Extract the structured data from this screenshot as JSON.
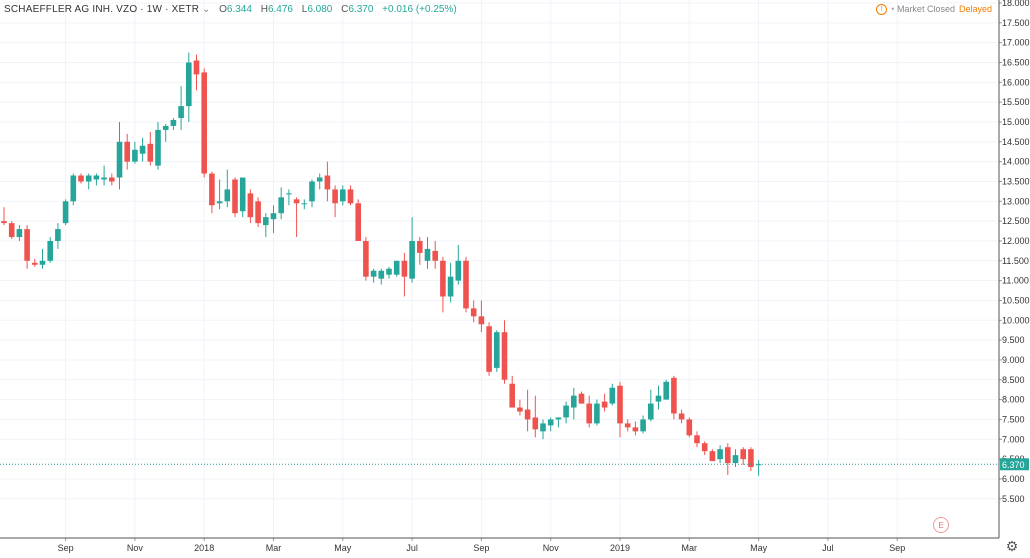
{
  "legend": {
    "symbol": "SCHAEFFLER AG INH. VZO · 1W · XETR",
    "chevron": "⌄",
    "open_label": "O",
    "open": "6.344",
    "high_label": "H",
    "high": "6.476",
    "low_label": "L",
    "low": "6.080",
    "close_label": "C",
    "close": "6.370",
    "change": "+0.016 (+0.25%)"
  },
  "status": {
    "icon": "!",
    "market": "Market Closed",
    "delayed": "Delayed"
  },
  "colors": {
    "up": "#26a69a",
    "down": "#ef5350",
    "grid": "#f0f3fa",
    "axis": "#555555",
    "last": "#26a69a"
  },
  "settings_icon": "gear-icon",
  "earnings_marker": "E",
  "chart_data": {
    "type": "candlestick",
    "title": "SCHAEFFLER AG INH. VZO · 1W · XETR",
    "ylim": [
      5.0,
      18.0
    ],
    "y_ticks": [
      "5.500",
      "6.000",
      "6.500",
      "7.000",
      "7.500",
      "8.000",
      "8.500",
      "9.000",
      "9.500",
      "10.000",
      "10.500",
      "11.000",
      "11.500",
      "12.000",
      "12.500",
      "13.000",
      "13.500",
      "14.000",
      "14.500",
      "15.000",
      "15.500",
      "16.000",
      "16.500",
      "17.000",
      "17.500",
      "18.000"
    ],
    "x_ticks": [
      {
        "label": "Sep",
        "week": 8
      },
      {
        "label": "Nov",
        "week": 17
      },
      {
        "label": "2018",
        "week": 26
      },
      {
        "label": "Mar",
        "week": 35
      },
      {
        "label": "May",
        "week": 44
      },
      {
        "label": "Jul",
        "week": 53
      },
      {
        "label": "Sep",
        "week": 62
      },
      {
        "label": "Nov",
        "week": 71
      },
      {
        "label": "2019",
        "week": 80
      },
      {
        "label": "Mar",
        "week": 89
      },
      {
        "label": "May",
        "week": 98
      },
      {
        "label": "Jul",
        "week": 107
      },
      {
        "label": "Sep",
        "week": 116
      }
    ],
    "last_price": "6.370",
    "ohlc": [
      [
        12.5,
        12.85,
        12.4,
        12.45
      ],
      [
        12.45,
        12.5,
        12.05,
        12.1
      ],
      [
        12.1,
        12.4,
        12.0,
        12.3
      ],
      [
        12.3,
        12.4,
        11.3,
        11.5
      ],
      [
        11.45,
        11.55,
        11.35,
        11.4
      ],
      [
        11.4,
        11.8,
        11.3,
        11.5
      ],
      [
        11.5,
        12.1,
        11.45,
        12.0
      ],
      [
        12.0,
        12.45,
        11.8,
        12.3
      ],
      [
        12.45,
        13.05,
        12.4,
        13.0
      ],
      [
        13.0,
        13.7,
        12.9,
        13.65
      ],
      [
        13.65,
        13.7,
        13.45,
        13.5
      ],
      [
        13.5,
        13.7,
        13.3,
        13.65
      ],
      [
        13.55,
        13.7,
        13.4,
        13.65
      ],
      [
        13.55,
        13.9,
        13.4,
        13.6
      ],
      [
        13.6,
        13.7,
        13.4,
        13.5
      ],
      [
        13.6,
        15.0,
        13.3,
        14.5
      ],
      [
        14.5,
        14.7,
        13.8,
        14.0
      ],
      [
        14.0,
        14.5,
        13.95,
        14.3
      ],
      [
        14.2,
        14.6,
        14.0,
        14.4
      ],
      [
        14.45,
        14.75,
        13.9,
        14.0
      ],
      [
        13.9,
        15.0,
        13.8,
        14.8
      ],
      [
        14.8,
        14.95,
        14.5,
        14.9
      ],
      [
        14.9,
        15.1,
        14.8,
        15.05
      ],
      [
        15.1,
        15.9,
        14.8,
        15.4
      ],
      [
        15.4,
        16.75,
        15.0,
        16.5
      ],
      [
        16.55,
        16.7,
        15.8,
        16.2
      ],
      [
        16.25,
        16.35,
        13.6,
        13.7
      ],
      [
        13.7,
        13.75,
        12.7,
        12.9
      ],
      [
        12.95,
        13.55,
        12.8,
        13.0
      ],
      [
        13.0,
        13.8,
        12.85,
        13.3
      ],
      [
        13.55,
        13.6,
        12.6,
        12.7
      ],
      [
        12.75,
        13.6,
        12.6,
        13.6
      ],
      [
        13.2,
        13.3,
        12.45,
        12.6
      ],
      [
        13.0,
        13.1,
        12.35,
        12.45
      ],
      [
        12.4,
        12.7,
        12.1,
        12.6
      ],
      [
        12.55,
        12.9,
        12.2,
        12.7
      ],
      [
        12.7,
        13.35,
        12.55,
        13.1
      ],
      [
        13.2,
        13.3,
        12.9,
        13.2
      ],
      [
        13.05,
        13.1,
        12.1,
        12.95
      ],
      [
        12.95,
        13.05,
        12.8,
        12.95
      ],
      [
        13.0,
        13.55,
        12.85,
        13.5
      ],
      [
        13.5,
        13.7,
        13.3,
        13.6
      ],
      [
        13.65,
        14.0,
        13.0,
        13.3
      ],
      [
        13.3,
        13.4,
        12.6,
        12.95
      ],
      [
        13.0,
        13.4,
        12.9,
        13.3
      ],
      [
        13.3,
        13.4,
        12.9,
        12.95
      ],
      [
        12.95,
        13.05,
        12.0,
        12.0
      ],
      [
        12.0,
        12.1,
        11.0,
        11.1
      ],
      [
        11.1,
        11.3,
        10.95,
        11.25
      ],
      [
        11.05,
        11.3,
        10.9,
        11.25
      ],
      [
        11.15,
        11.35,
        11.05,
        11.3
      ],
      [
        11.15,
        11.5,
        11.1,
        11.5
      ],
      [
        11.5,
        11.7,
        10.6,
        11.1
      ],
      [
        11.05,
        12.6,
        10.95,
        12.0
      ],
      [
        12.0,
        12.1,
        11.4,
        11.7
      ],
      [
        11.5,
        12.1,
        11.3,
        11.8
      ],
      [
        11.75,
        12.0,
        11.3,
        11.5
      ],
      [
        11.5,
        11.6,
        10.2,
        10.6
      ],
      [
        10.6,
        11.45,
        10.45,
        11.1
      ],
      [
        11.0,
        11.9,
        10.9,
        11.5
      ],
      [
        11.5,
        11.6,
        10.2,
        10.3
      ],
      [
        10.3,
        10.5,
        9.95,
        10.1
      ],
      [
        10.1,
        10.5,
        9.7,
        9.9
      ],
      [
        9.85,
        9.95,
        8.6,
        8.7
      ],
      [
        8.8,
        9.75,
        8.7,
        9.7
      ],
      [
        9.7,
        10.0,
        8.4,
        8.5
      ],
      [
        8.4,
        8.6,
        7.8,
        7.8
      ],
      [
        7.8,
        8.0,
        7.6,
        7.7
      ],
      [
        7.75,
        8.25,
        7.2,
        7.5
      ],
      [
        7.55,
        8.1,
        7.05,
        7.25
      ],
      [
        7.2,
        7.5,
        7.0,
        7.4
      ],
      [
        7.35,
        7.55,
        7.2,
        7.5
      ],
      [
        7.5,
        7.55,
        7.3,
        7.55
      ],
      [
        7.55,
        7.95,
        7.4,
        7.85
      ],
      [
        7.8,
        8.3,
        7.5,
        8.1
      ],
      [
        8.15,
        8.2,
        7.9,
        7.9
      ],
      [
        7.9,
        8.1,
        7.3,
        7.4
      ],
      [
        7.4,
        8.0,
        7.35,
        7.9
      ],
      [
        7.95,
        8.15,
        7.7,
        7.8
      ],
      [
        7.9,
        8.4,
        7.85,
        8.3
      ],
      [
        8.35,
        8.45,
        7.05,
        7.4
      ],
      [
        7.4,
        7.5,
        7.2,
        7.3
      ],
      [
        7.3,
        7.45,
        7.1,
        7.2
      ],
      [
        7.2,
        7.6,
        7.15,
        7.5
      ],
      [
        7.5,
        8.25,
        7.45,
        7.9
      ],
      [
        7.95,
        8.35,
        7.75,
        8.1
      ],
      [
        8.0,
        8.5,
        8.0,
        8.45
      ],
      [
        8.55,
        8.6,
        7.5,
        7.65
      ],
      [
        7.65,
        7.75,
        7.4,
        7.5
      ],
      [
        7.5,
        7.55,
        7.05,
        7.1
      ],
      [
        7.1,
        7.2,
        6.8,
        6.9
      ],
      [
        6.9,
        6.95,
        6.6,
        6.7
      ],
      [
        6.7,
        6.75,
        6.45,
        6.45
      ],
      [
        6.5,
        6.85,
        6.4,
        6.75
      ],
      [
        6.8,
        6.9,
        6.1,
        6.4
      ],
      [
        6.4,
        6.75,
        6.3,
        6.6
      ],
      [
        6.75,
        6.8,
        6.35,
        6.5
      ],
      [
        6.75,
        6.8,
        6.2,
        6.3
      ],
      [
        6.344,
        6.476,
        6.08,
        6.37
      ]
    ]
  }
}
